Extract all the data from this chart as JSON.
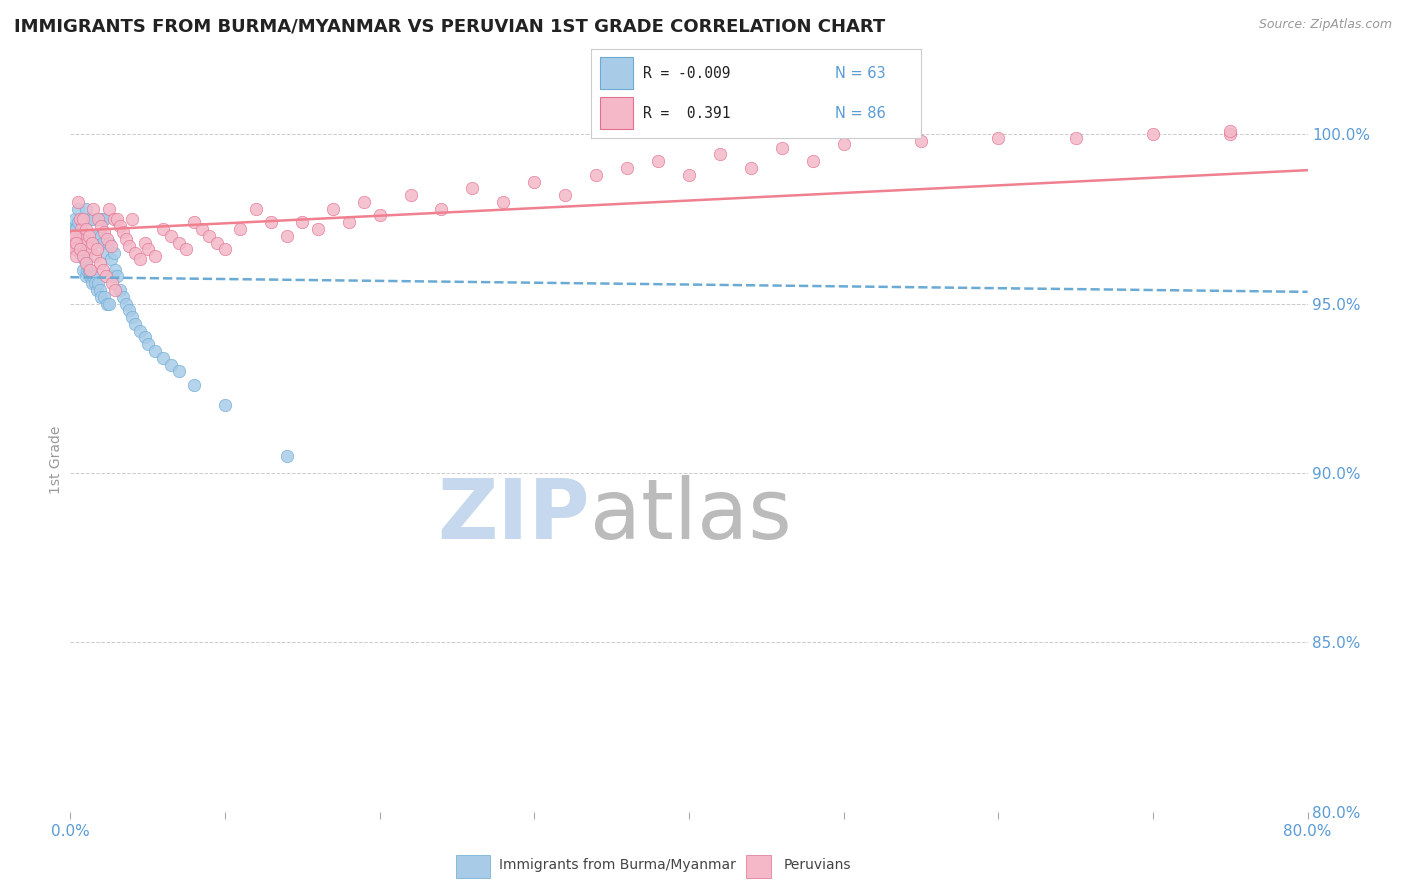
{
  "title": "IMMIGRANTS FROM BURMA/MYANMAR VS PERUVIAN 1ST GRADE CORRELATION CHART",
  "source_text": "Source: ZipAtlas.com",
  "ylabel": "1st Grade",
  "ylabel_right_ticks": [
    "100.0%",
    "95.0%",
    "90.0%",
    "85.0%",
    "80.0%"
  ],
  "ylabel_right_vals": [
    1.0,
    0.95,
    0.9,
    0.85,
    0.8
  ],
  "x_min": 0.0,
  "x_max": 0.8,
  "y_min": 0.8,
  "y_max": 1.008,
  "blue_color": "#A8CCE8",
  "pink_color": "#F4B8C8",
  "blue_edge": "#6AAAD4",
  "pink_edge": "#E07090",
  "blue_line_color": "#6AAAD4",
  "pink_line_color": "#F08090",
  "axis_label_color": "#5B9BD5",
  "watermark_color": "#D8E8F5",
  "blue_scatter_x": [
    0.001,
    0.002,
    0.002,
    0.003,
    0.003,
    0.003,
    0.004,
    0.004,
    0.005,
    0.005,
    0.005,
    0.006,
    0.006,
    0.007,
    0.008,
    0.008,
    0.009,
    0.01,
    0.01,
    0.01,
    0.011,
    0.012,
    0.012,
    0.013,
    0.014,
    0.015,
    0.015,
    0.016,
    0.017,
    0.018,
    0.018,
    0.019,
    0.02,
    0.02,
    0.02,
    0.021,
    0.022,
    0.022,
    0.023,
    0.024,
    0.025,
    0.025,
    0.026,
    0.027,
    0.028,
    0.029,
    0.03,
    0.032,
    0.034,
    0.036,
    0.038,
    0.04,
    0.042,
    0.045,
    0.048,
    0.05,
    0.055,
    0.06,
    0.065,
    0.07,
    0.08,
    0.1,
    0.14
  ],
  "blue_scatter_y": [
    0.972,
    0.97,
    0.968,
    0.975,
    0.972,
    0.968,
    0.972,
    0.966,
    0.978,
    0.974,
    0.968,
    0.97,
    0.965,
    0.968,
    0.965,
    0.96,
    0.963,
    0.978,
    0.963,
    0.958,
    0.96,
    0.975,
    0.96,
    0.958,
    0.956,
    0.975,
    0.958,
    0.956,
    0.954,
    0.97,
    0.956,
    0.954,
    0.975,
    0.97,
    0.952,
    0.968,
    0.975,
    0.952,
    0.965,
    0.95,
    0.968,
    0.95,
    0.963,
    0.958,
    0.965,
    0.96,
    0.958,
    0.954,
    0.952,
    0.95,
    0.948,
    0.946,
    0.944,
    0.942,
    0.94,
    0.938,
    0.936,
    0.934,
    0.932,
    0.93,
    0.926,
    0.92,
    0.905
  ],
  "pink_scatter_x": [
    0.001,
    0.002,
    0.003,
    0.004,
    0.005,
    0.006,
    0.007,
    0.008,
    0.009,
    0.01,
    0.011,
    0.012,
    0.013,
    0.014,
    0.015,
    0.016,
    0.017,
    0.018,
    0.019,
    0.02,
    0.021,
    0.022,
    0.023,
    0.024,
    0.025,
    0.026,
    0.027,
    0.028,
    0.029,
    0.03,
    0.032,
    0.034,
    0.036,
    0.038,
    0.04,
    0.042,
    0.045,
    0.048,
    0.05,
    0.055,
    0.06,
    0.065,
    0.07,
    0.075,
    0.08,
    0.085,
    0.09,
    0.095,
    0.1,
    0.11,
    0.12,
    0.13,
    0.14,
    0.15,
    0.16,
    0.17,
    0.18,
    0.19,
    0.2,
    0.22,
    0.24,
    0.26,
    0.28,
    0.3,
    0.32,
    0.34,
    0.36,
    0.38,
    0.4,
    0.42,
    0.44,
    0.46,
    0.48,
    0.5,
    0.55,
    0.6,
    0.65,
    0.7,
    0.75,
    0.003,
    0.004,
    0.006,
    0.008,
    0.01,
    0.013,
    0.75
  ],
  "pink_scatter_y": [
    0.97,
    0.968,
    0.966,
    0.964,
    0.98,
    0.975,
    0.972,
    0.975,
    0.97,
    0.972,
    0.968,
    0.97,
    0.966,
    0.968,
    0.978,
    0.964,
    0.966,
    0.975,
    0.962,
    0.973,
    0.96,
    0.971,
    0.958,
    0.969,
    0.978,
    0.967,
    0.956,
    0.975,
    0.954,
    0.975,
    0.973,
    0.971,
    0.969,
    0.967,
    0.975,
    0.965,
    0.963,
    0.968,
    0.966,
    0.964,
    0.972,
    0.97,
    0.968,
    0.966,
    0.974,
    0.972,
    0.97,
    0.968,
    0.966,
    0.972,
    0.978,
    0.974,
    0.97,
    0.974,
    0.972,
    0.978,
    0.974,
    0.98,
    0.976,
    0.982,
    0.978,
    0.984,
    0.98,
    0.986,
    0.982,
    0.988,
    0.99,
    0.992,
    0.988,
    0.994,
    0.99,
    0.996,
    0.992,
    0.997,
    0.998,
    0.999,
    0.999,
    1.0,
    1.0,
    0.97,
    0.968,
    0.966,
    0.964,
    0.962,
    0.96,
    1.001
  ]
}
